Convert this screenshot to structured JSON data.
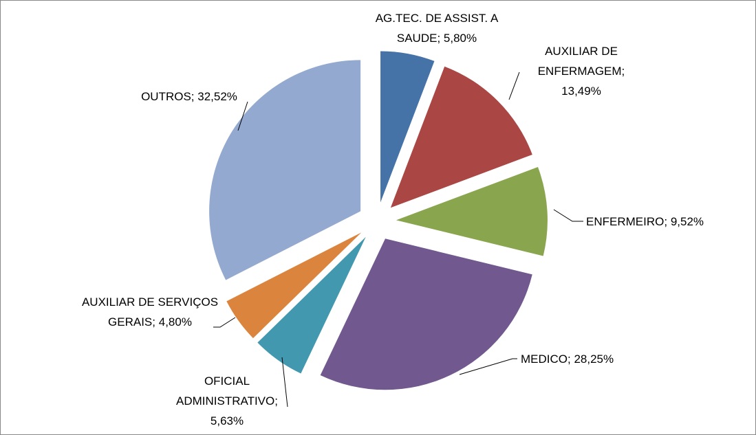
{
  "chart_data": {
    "type": "pie",
    "categories": [
      "AG.TEC. DE ASSIST. A SAUDE",
      "AUXILIAR DE ENFERMAGEM",
      "ENFERMEIRO",
      "MEDICO",
      "OFICIAL ADMINISTRATIVO",
      "AUXILIAR DE SERVIÇOS GERAIS",
      "OUTROS"
    ],
    "values": [
      5.8,
      13.49,
      9.52,
      28.25,
      5.63,
      4.8,
      32.52
    ],
    "value_labels": [
      "5,80%",
      "13,49%",
      "9,52%",
      "28,25%",
      "5,63%",
      "4,80%",
      "32,52%"
    ],
    "label_separator": ";",
    "colors": [
      "#4572a7",
      "#aa4643",
      "#89a54e",
      "#71588f",
      "#4198af",
      "#db843d",
      "#93a9cf"
    ]
  }
}
